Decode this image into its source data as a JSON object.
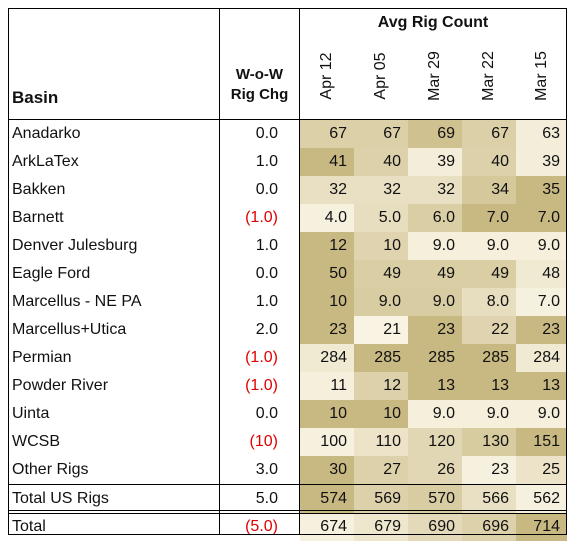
{
  "table": {
    "header": {
      "basin": "Basin",
      "wow_line1": "W-o-W",
      "wow_line2": "Rig Chg",
      "group": "Avg Rig Count",
      "dates": [
        "Apr 12",
        "Apr 05",
        "Mar 29",
        "Mar 22",
        "Mar 15"
      ]
    },
    "rows": [
      {
        "basin": "Anadarko",
        "wow": "0.0",
        "neg": false,
        "counts": [
          "67",
          "67",
          "69",
          "67",
          "63"
        ],
        "shade": [
          0.62,
          0.62,
          0.85,
          0.62,
          0.15
        ]
      },
      {
        "basin": "ArkLaTex",
        "wow": "1.0",
        "neg": false,
        "counts": [
          "41",
          "40",
          "39",
          "40",
          "39"
        ],
        "shade": [
          1.0,
          0.6,
          0.15,
          0.6,
          0.15
        ]
      },
      {
        "basin": "Bakken",
        "wow": "0.0",
        "neg": false,
        "counts": [
          "32",
          "32",
          "32",
          "34",
          "35"
        ],
        "shade": [
          0.35,
          0.35,
          0.35,
          0.75,
          1.0
        ]
      },
      {
        "basin": "Barnett",
        "wow": "(1.0)",
        "neg": true,
        "counts": [
          "4.0",
          "5.0",
          "6.0",
          "7.0",
          "7.0"
        ],
        "shade": [
          0.1,
          0.4,
          0.65,
          1.0,
          1.0
        ]
      },
      {
        "basin": "Denver Julesburg",
        "wow": "1.0",
        "neg": false,
        "counts": [
          "12",
          "10",
          "9.0",
          "9.0",
          "9.0"
        ],
        "shade": [
          1.0,
          0.55,
          0.12,
          0.12,
          0.12
        ]
      },
      {
        "basin": "Eagle Ford",
        "wow": "0.0",
        "neg": false,
        "counts": [
          "50",
          "49",
          "49",
          "49",
          "48"
        ],
        "shade": [
          1.0,
          0.65,
          0.65,
          0.65,
          0.2
        ]
      },
      {
        "basin": "Marcellus - NE PA",
        "wow": "1.0",
        "neg": false,
        "counts": [
          "10",
          "9.0",
          "9.0",
          "8.0",
          "7.0"
        ],
        "shade": [
          1.0,
          0.68,
          0.68,
          0.4,
          0.1
        ]
      },
      {
        "basin": "Marcellus+Utica",
        "wow": "2.0",
        "neg": false,
        "counts": [
          "23",
          "21",
          "23",
          "22",
          "23"
        ],
        "shade": [
          1.0,
          0.05,
          1.0,
          0.55,
          1.0
        ]
      },
      {
        "basin": "Permian",
        "wow": "(1.0)",
        "neg": true,
        "counts": [
          "284",
          "285",
          "285",
          "285",
          "284"
        ],
        "shade": [
          0.2,
          1.0,
          1.0,
          1.0,
          0.2
        ]
      },
      {
        "basin": "Powder River",
        "wow": "(1.0)",
        "neg": true,
        "counts": [
          "11",
          "12",
          "13",
          "13",
          "13"
        ],
        "shade": [
          0.12,
          0.6,
          1.0,
          1.0,
          1.0
        ]
      },
      {
        "basin": "Uinta",
        "wow": "0.0",
        "neg": false,
        "counts": [
          "10",
          "10",
          "9.0",
          "9.0",
          "9.0"
        ],
        "shade": [
          1.0,
          1.0,
          0.12,
          0.12,
          0.12
        ]
      },
      {
        "basin": "WCSB",
        "wow": "(10)",
        "neg": true,
        "counts": [
          "100",
          "110",
          "120",
          "130",
          "151"
        ],
        "shade": [
          0.1,
          0.3,
          0.5,
          0.7,
          1.0
        ]
      },
      {
        "basin": "Other Rigs",
        "wow": "3.0",
        "neg": false,
        "counts": [
          "30",
          "27",
          "26",
          "23",
          "25"
        ],
        "shade": [
          1.0,
          0.6,
          0.5,
          0.1,
          0.3
        ]
      }
    ],
    "total_us": {
      "basin": "Total US Rigs",
      "wow": "5.0",
      "neg": false,
      "counts": [
        "574",
        "569",
        "570",
        "566",
        "562"
      ],
      "shade": [
        1.0,
        0.6,
        0.68,
        0.35,
        0.1
      ]
    },
    "total": {
      "basin": "Total",
      "wow": "(5.0)",
      "neg": true,
      "counts": [
        "674",
        "679",
        "690",
        "696",
        "714"
      ],
      "shade": [
        0.1,
        0.25,
        0.45,
        0.6,
        1.0
      ]
    }
  },
  "colors": {
    "low": "#fbf6e8",
    "high": "#c8b881",
    "negative": "#e00000"
  }
}
